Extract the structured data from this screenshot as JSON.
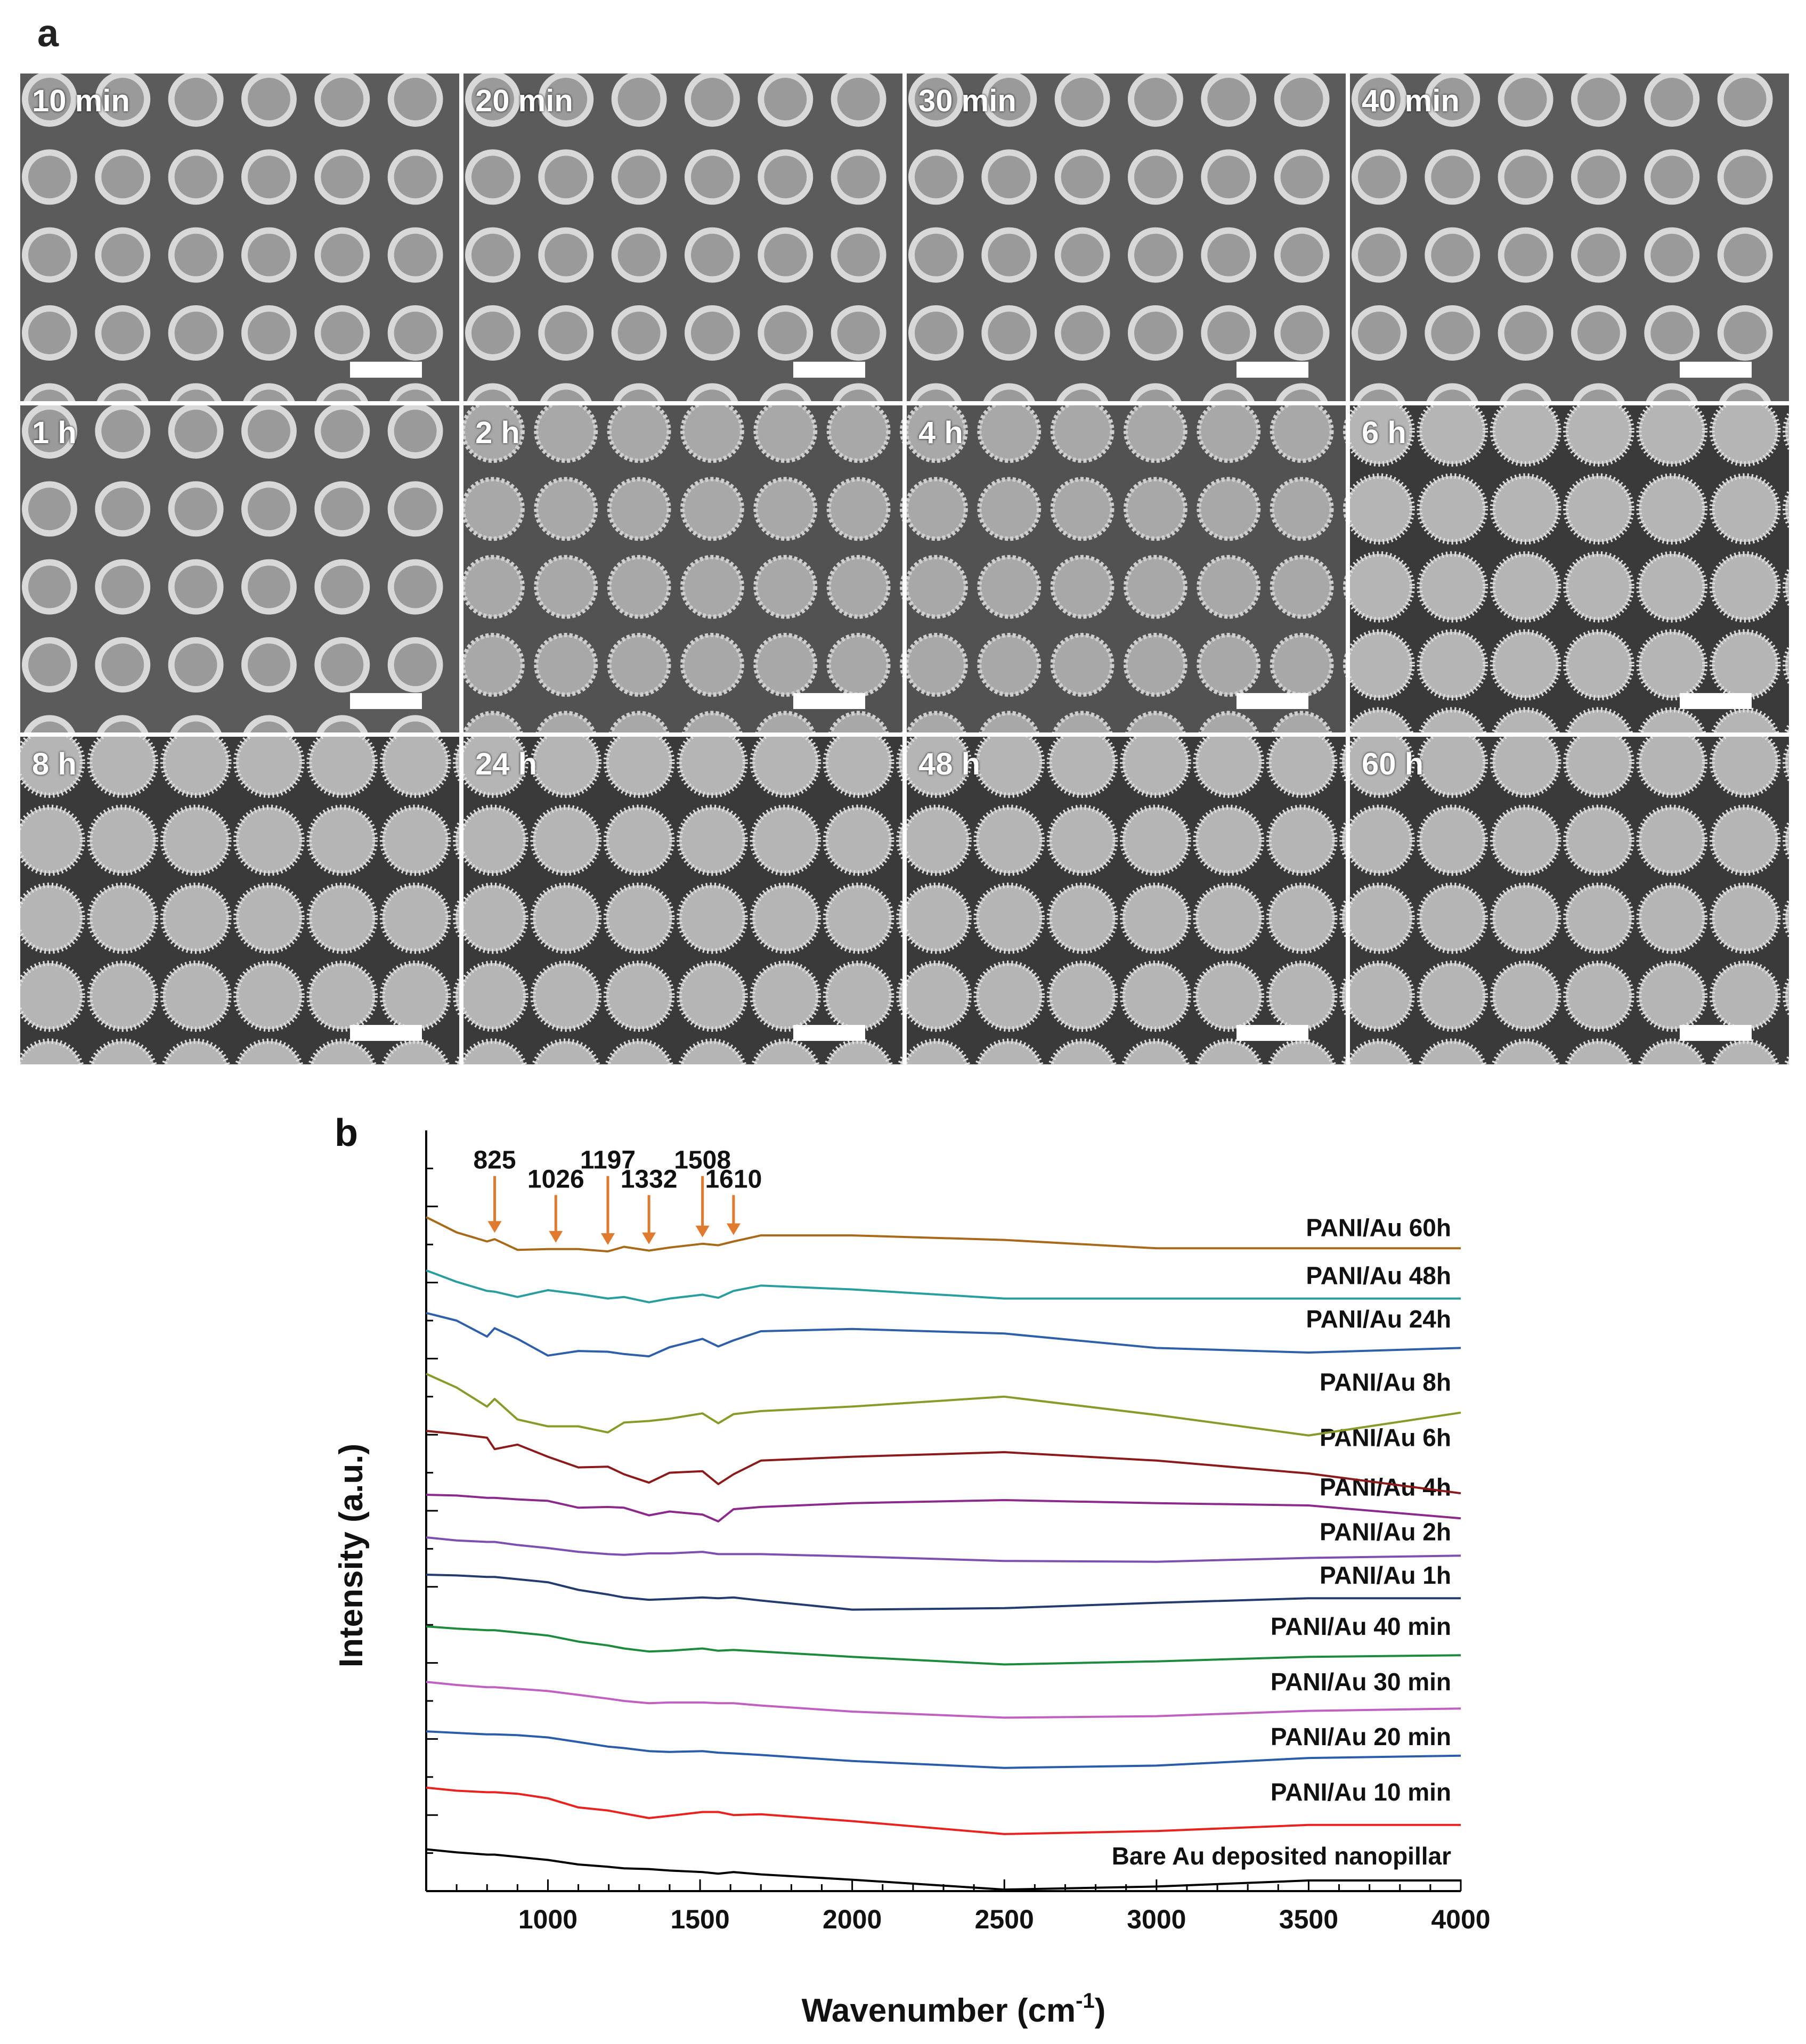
{
  "panel_a": {
    "letter": "a",
    "tiles": [
      {
        "label": "10 min",
        "stage": "ring"
      },
      {
        "label": "20 min",
        "stage": "ring"
      },
      {
        "label": "30 min",
        "stage": "ring"
      },
      {
        "label": "40 min",
        "stage": "ring"
      },
      {
        "label": "1 h",
        "stage": "ring"
      },
      {
        "label": "2 h",
        "stage": "fuzzy"
      },
      {
        "label": "4 h",
        "stage": "fuzzy"
      },
      {
        "label": "6 h",
        "stage": "fibrous"
      },
      {
        "label": "8 h",
        "stage": "fibrous"
      },
      {
        "label": "24 h",
        "stage": "fibrous"
      },
      {
        "label": "48 h",
        "stage": "fibrous"
      },
      {
        "label": "60 h",
        "stage": "fibrous"
      }
    ]
  },
  "panel_b": {
    "letter": "b"
  },
  "chart_data": {
    "type": "line",
    "title": "",
    "xlabel": "Wavenumber (cm-1)",
    "xlabel_main": "Wavenumber (cm",
    "xlabel_sup": "-1",
    "xlabel_close": ")",
    "ylabel": "Intensity (a.u.)",
    "xlim": [
      600,
      4000
    ],
    "xticks": [
      1000,
      1500,
      2000,
      2500,
      3000,
      3500,
      4000
    ],
    "ylim": [
      0,
      100
    ],
    "yticks_labeled": false,
    "grid": false,
    "peak_annotations": [
      {
        "wavenumber": 825,
        "label": "825",
        "level": "upper"
      },
      {
        "wavenumber": 1026,
        "label": "1026",
        "level": "lower"
      },
      {
        "wavenumber": 1197,
        "label": "1197",
        "level": "upper"
      },
      {
        "wavenumber": 1332,
        "label": "1332",
        "level": "lower"
      },
      {
        "wavenumber": 1508,
        "label": "1508",
        "level": "upper"
      },
      {
        "wavenumber": 1610,
        "label": "1610",
        "level": "lower"
      }
    ],
    "annotation_color": "#e07a2e",
    "x": [
      600,
      700,
      800,
      825,
      900,
      1000,
      1100,
      1197,
      1250,
      1332,
      1400,
      1508,
      1560,
      1610,
      1700,
      2000,
      2500,
      3000,
      3500,
      4000
    ],
    "series": [
      {
        "name": "Bare Au deposited nanopillar",
        "color": "#000000",
        "label_y": 3.5,
        "values": [
          5.5,
          5.1,
          4.8,
          4.8,
          4.5,
          4.1,
          3.5,
          3.2,
          3.0,
          2.9,
          2.7,
          2.5,
          2.3,
          2.5,
          2.2,
          1.5,
          0.2,
          0.6,
          1.4,
          1.4
        ]
      },
      {
        "name": "PANI/Au 10 min",
        "color": "#e8231f",
        "label_y": 11.9,
        "values": [
          13.6,
          13.2,
          13.0,
          13.0,
          12.8,
          12.2,
          11.0,
          10.6,
          10.2,
          9.6,
          9.9,
          10.4,
          10.4,
          10.0,
          10.1,
          9.2,
          7.5,
          7.9,
          8.7,
          8.7
        ]
      },
      {
        "name": "PANI/Au 20 min",
        "color": "#2a5caa",
        "label_y": 19.2,
        "values": [
          21.0,
          20.8,
          20.6,
          20.6,
          20.5,
          20.2,
          19.6,
          19.0,
          18.8,
          18.4,
          18.3,
          18.4,
          18.2,
          18.1,
          17.9,
          17.1,
          16.2,
          16.5,
          17.5,
          17.8
        ]
      },
      {
        "name": "PANI/Au 30 min",
        "color": "#c060c0",
        "label_y": 26.4,
        "values": [
          27.5,
          27.1,
          26.8,
          26.8,
          26.6,
          26.3,
          25.8,
          25.3,
          25.0,
          24.7,
          24.8,
          24.8,
          24.7,
          24.7,
          24.4,
          23.6,
          22.8,
          23.0,
          23.7,
          24.0
        ]
      },
      {
        "name": "PANI/Au 40 min",
        "color": "#1e8a3e",
        "label_y": 33.7,
        "values": [
          34.8,
          34.5,
          34.3,
          34.3,
          34.0,
          33.6,
          32.8,
          32.3,
          31.9,
          31.5,
          31.6,
          31.9,
          31.6,
          31.7,
          31.5,
          30.8,
          29.8,
          30.2,
          30.8,
          31.0
        ]
      },
      {
        "name": "PANI/Au 1h",
        "color": "#233b6e",
        "label_y": 40.4,
        "values": [
          41.6,
          41.5,
          41.3,
          41.3,
          41.0,
          40.6,
          39.6,
          39.0,
          38.6,
          38.3,
          38.4,
          38.6,
          38.5,
          38.6,
          38.2,
          37.0,
          37.2,
          37.9,
          38.5,
          38.5
        ]
      },
      {
        "name": "PANI/Au 2h",
        "color": "#7d4fb0",
        "label_y": 46.1,
        "values": [
          46.5,
          46.1,
          45.9,
          45.9,
          45.5,
          45.1,
          44.6,
          44.3,
          44.2,
          44.4,
          44.4,
          44.6,
          44.3,
          44.3,
          44.3,
          44.0,
          43.4,
          43.3,
          43.8,
          44.1
        ]
      },
      {
        "name": "PANI/Au 4h",
        "color": "#8b2a8b",
        "label_y": 52.0,
        "values": [
          52.1,
          52.0,
          51.7,
          51.7,
          51.5,
          51.3,
          50.4,
          50.5,
          50.4,
          49.4,
          49.9,
          49.5,
          48.6,
          50.2,
          50.5,
          51.0,
          51.4,
          51.0,
          50.7,
          49.0
        ]
      },
      {
        "name": "PANI/Au 6h",
        "color": "#8b1a1a",
        "label_y": 58.5,
        "values": [
          60.5,
          60.1,
          59.6,
          58.1,
          58.7,
          57.1,
          55.7,
          55.8,
          54.8,
          53.7,
          55.0,
          55.2,
          53.5,
          54.8,
          56.6,
          57.1,
          57.7,
          56.6,
          54.9,
          52.3
        ]
      },
      {
        "name": "PANI/Au 8h",
        "color": "#8a9a2a",
        "label_y": 65.8,
        "values": [
          68.0,
          66.2,
          63.7,
          64.7,
          62.0,
          61.1,
          61.1,
          60.3,
          61.6,
          61.8,
          62.1,
          62.8,
          61.5,
          62.7,
          63.1,
          63.7,
          65.0,
          62.6,
          59.9,
          62.9
        ]
      },
      {
        "name": "PANI/Au 24h",
        "color": "#2e5fa8",
        "label_y": 74.1,
        "values": [
          76.0,
          75.0,
          72.9,
          74.0,
          72.6,
          70.4,
          71.0,
          70.9,
          70.6,
          70.3,
          71.5,
          72.6,
          71.6,
          72.4,
          73.6,
          73.9,
          73.3,
          71.4,
          70.8,
          71.4
        ]
      },
      {
        "name": "PANI/Au 48h",
        "color": "#2a9e9e",
        "label_y": 79.8,
        "values": [
          81.6,
          80.1,
          78.9,
          78.8,
          78.1,
          79.0,
          78.5,
          77.9,
          78.1,
          77.4,
          77.9,
          78.4,
          78.0,
          78.9,
          79.6,
          79.1,
          77.9,
          77.9,
          77.9,
          77.9
        ]
      },
      {
        "name": "PANI/Au 60h",
        "color": "#a86a1a",
        "label_y": 86.1,
        "values": [
          88.6,
          86.6,
          85.4,
          85.7,
          84.3,
          84.4,
          84.4,
          84.1,
          84.7,
          84.2,
          84.6,
          85.1,
          84.9,
          85.4,
          86.2,
          86.2,
          85.6,
          84.5,
          84.5,
          84.5
        ]
      }
    ]
  }
}
